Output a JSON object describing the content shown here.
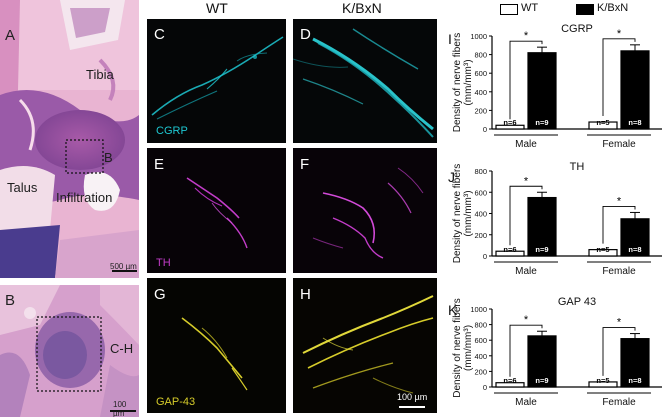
{
  "columns": {
    "wt": "WT",
    "kbxn": "K/BxN"
  },
  "legend": {
    "wt_label": "WT",
    "kbxn_label": "K/BxN",
    "wt_color": "#ffffff",
    "kbxn_color": "#000000"
  },
  "histology": {
    "panel_a": {
      "letter": "A",
      "tibia": "Tibia",
      "talus": "Talus",
      "infiltration": "Infiltration",
      "box_label": "B",
      "scale": "500 µm"
    },
    "panel_b": {
      "letter": "B",
      "box_label": "C-H",
      "scale": "100 µm"
    }
  },
  "micro": {
    "C": {
      "letter": "C",
      "stain": "CGRP",
      "color": "#1ec8d2"
    },
    "D": {
      "letter": "D",
      "color": "#2fd8e0"
    },
    "E": {
      "letter": "E",
      "stain": "TH",
      "color": "#c23cc8"
    },
    "F": {
      "letter": "F",
      "color": "#d24ad8"
    },
    "G": {
      "letter": "G",
      "stain": "GAP-43",
      "color": "#d6cc2a"
    },
    "H": {
      "letter": "H",
      "color": "#e0d83a",
      "scale": "100 µm"
    }
  },
  "chart_data": [
    {
      "type": "bar",
      "letter": "I",
      "title": "CGRP",
      "ylabel": "Density of nerve fibers (mm/mm³)",
      "ylim": [
        0,
        1000
      ],
      "yticks": [
        0,
        200,
        400,
        600,
        800,
        1000
      ],
      "groups": [
        "Male",
        "Female"
      ],
      "series": [
        {
          "name": "WT",
          "values": [
            40,
            75
          ],
          "n": [
            "n=6",
            "n=5"
          ]
        },
        {
          "name": "K/BxN",
          "values": [
            820,
            840
          ],
          "n": [
            "n=9",
            "n=8"
          ]
        }
      ],
      "errors": [
        60,
        65
      ],
      "significance": [
        "*",
        "*"
      ]
    },
    {
      "type": "bar",
      "letter": "J",
      "title": "TH",
      "ylabel": "Density of nerve fibers (mm/mm³)",
      "ylim": [
        0,
        800
      ],
      "yticks": [
        0,
        200,
        400,
        600,
        800
      ],
      "groups": [
        "Male",
        "Female"
      ],
      "series": [
        {
          "name": "WT",
          "values": [
            45,
            60
          ],
          "n": [
            "n=6",
            "n=5"
          ]
        },
        {
          "name": "K/BxN",
          "values": [
            550,
            350
          ],
          "n": [
            "n=9",
            "n=8"
          ]
        }
      ],
      "errors": [
        50,
        60
      ],
      "significance": [
        "*",
        "*"
      ]
    },
    {
      "type": "bar",
      "letter": "K",
      "title": "GAP 43",
      "ylabel": "Density of nerve fibers (mm/mm³)",
      "ylim": [
        0,
        1000
      ],
      "yticks": [
        0,
        200,
        400,
        600,
        800,
        1000
      ],
      "groups": [
        "Male",
        "Female"
      ],
      "series": [
        {
          "name": "WT",
          "values": [
            55,
            65
          ],
          "n": [
            "n=6",
            "n=5"
          ]
        },
        {
          "name": "K/BxN",
          "values": [
            655,
            620
          ],
          "n": [
            "n=9",
            "n=8"
          ]
        }
      ],
      "errors": [
        60,
        65
      ],
      "significance": [
        "*",
        "*"
      ]
    }
  ]
}
